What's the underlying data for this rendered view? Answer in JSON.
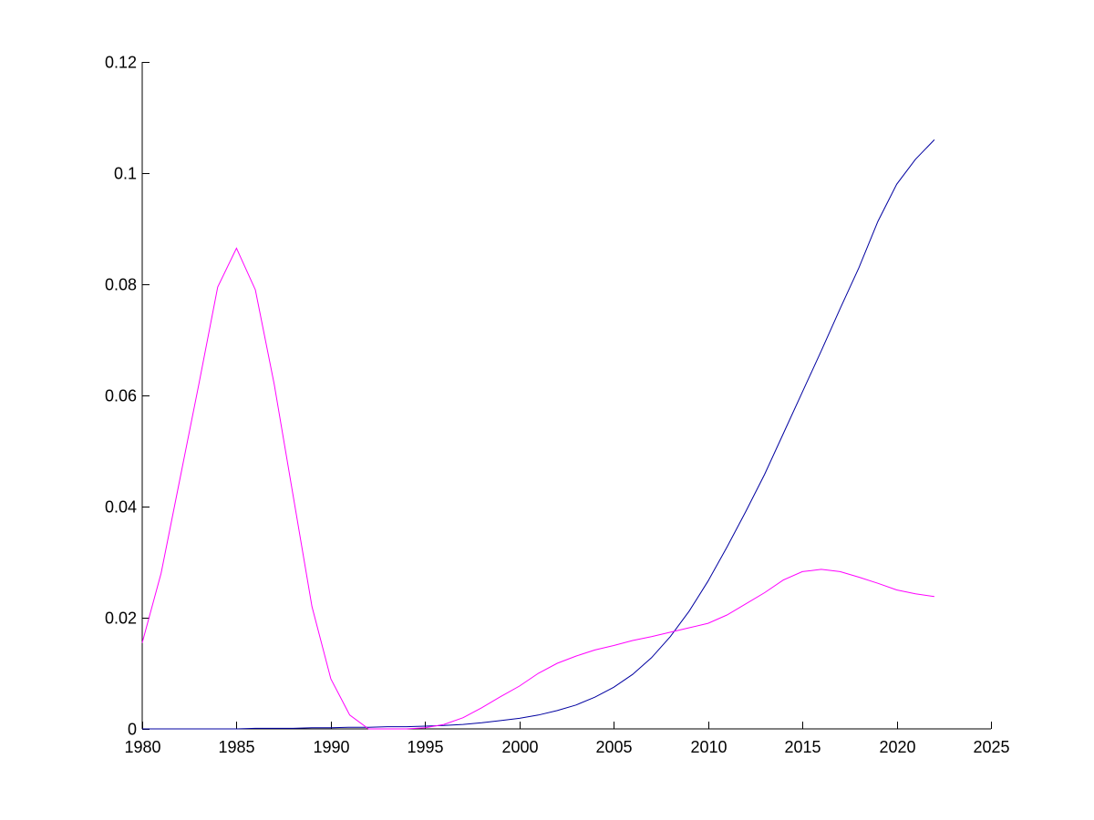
{
  "chart_data": {
    "type": "line",
    "title": "",
    "xlabel": "",
    "ylabel": "",
    "xlim": [
      1980,
      2025
    ],
    "ylim": [
      0,
      0.12
    ],
    "grid": false,
    "legend": "none",
    "x_ticks": [
      {
        "value": 1980,
        "label": "1980"
      },
      {
        "value": 1985,
        "label": "1985"
      },
      {
        "value": 1990,
        "label": "1990"
      },
      {
        "value": 1995,
        "label": "1995"
      },
      {
        "value": 2000,
        "label": "2000"
      },
      {
        "value": 2005,
        "label": "2005"
      },
      {
        "value": 2010,
        "label": "2010"
      },
      {
        "value": 2015,
        "label": "2015"
      },
      {
        "value": 2020,
        "label": "2020"
      },
      {
        "value": 2025,
        "label": "2025"
      }
    ],
    "y_ticks": [
      {
        "value": 0,
        "label": "0"
      },
      {
        "value": 0.02,
        "label": "0.02"
      },
      {
        "value": 0.04,
        "label": "0.04"
      },
      {
        "value": 0.06,
        "label": "0.06"
      },
      {
        "value": 0.08,
        "label": "0.08"
      },
      {
        "value": 0.1,
        "label": "0.1"
      },
      {
        "value": 0.12,
        "label": "0.12"
      }
    ],
    "x": [
      1980,
      1981,
      1982,
      1983,
      1984,
      1985,
      1986,
      1987,
      1988,
      1989,
      1990,
      1991,
      1992,
      1993,
      1994,
      1995,
      1996,
      1997,
      1998,
      1999,
      2000,
      2001,
      2002,
      2003,
      2004,
      2005,
      2006,
      2007,
      2008,
      2009,
      2010,
      2011,
      2012,
      2013,
      2014,
      2015,
      2016,
      2017,
      2018,
      2019,
      2020,
      2021,
      2022
    ],
    "series": [
      {
        "color": "#0000a0",
        "values": [
          0,
          0,
          0,
          0,
          0,
          0,
          0.0001,
          0.0001,
          0.0001,
          0.0002,
          0.0002,
          0.0003,
          0.0003,
          0.0004,
          0.0004,
          0.0005,
          0.0006,
          0.0008,
          0.0011,
          0.0015,
          0.0019,
          0.0025,
          0.0033,
          0.0043,
          0.0057,
          0.0075,
          0.0098,
          0.0128,
          0.0166,
          0.0212,
          0.0266,
          0.0327,
          0.0391,
          0.0458,
          0.0532,
          0.0606,
          0.068,
          0.0756,
          0.083,
          0.0913,
          0.098,
          0.1025,
          0.106
        ]
      },
      {
        "color": "#ff00ff",
        "values": [
          0.0155,
          0.028,
          0.045,
          0.062,
          0.0795,
          0.0865,
          0.079,
          0.062,
          0.042,
          0.022,
          0.009,
          0.0025,
          0,
          0,
          0,
          0.0002,
          0.0008,
          0.002,
          0.0038,
          0.0058,
          0.0077,
          0.01,
          0.0118,
          0.0131,
          0.0142,
          0.015,
          0.0159,
          0.0166,
          0.0174,
          0.0182,
          0.019,
          0.0205,
          0.0225,
          0.0245,
          0.0268,
          0.0283,
          0.0287,
          0.0283,
          0.0273,
          0.0262,
          0.025,
          0.0243,
          0.0238
        ]
      }
    ]
  }
}
